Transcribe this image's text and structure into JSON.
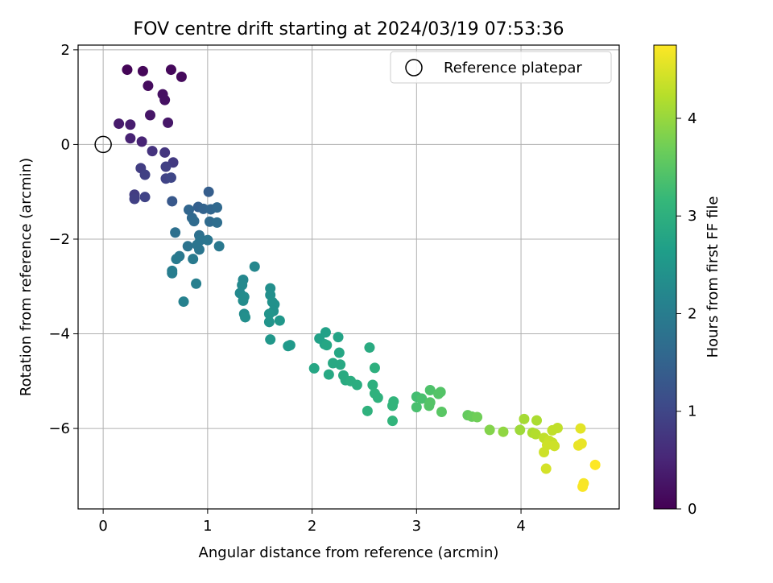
{
  "chart_data": {
    "type": "scatter",
    "title": "FOV centre drift starting at 2024/03/19 07:53:36",
    "xlabel": "Angular distance from reference (arcmin)",
    "ylabel": "Rotation from reference (arcmin)",
    "xlim": [
      -0.24,
      4.94
    ],
    "ylim": [
      -7.7,
      2.1
    ],
    "xticks": [
      0,
      1,
      2,
      3,
      4
    ],
    "yticks": [
      2,
      0,
      -2,
      -4,
      -6
    ],
    "grid": true,
    "legend": {
      "position": "top-right",
      "entries": [
        "Reference platepar"
      ]
    },
    "reference_point": {
      "x": 0,
      "y": 0
    },
    "colorbar": {
      "label": "Hours from first FF file",
      "range": [
        0,
        4.75
      ],
      "ticks": [
        0,
        1,
        2,
        3,
        4
      ],
      "colormap": "viridis",
      "colors": [
        "#440154",
        "#482878",
        "#3e4a89",
        "#31688e",
        "#26828e",
        "#1f9e89",
        "#35b779",
        "#6ece58",
        "#b5de2b",
        "#fde725"
      ]
    },
    "points": [
      {
        "x": 0.23,
        "y": 1.58,
        "c": 0.05
      },
      {
        "x": 0.38,
        "y": 1.55,
        "c": 0.08
      },
      {
        "x": 0.65,
        "y": 1.58,
        "c": 0.1
      },
      {
        "x": 0.75,
        "y": 1.43,
        "c": 0.12
      },
      {
        "x": 0.43,
        "y": 1.24,
        "c": 0.15
      },
      {
        "x": 0.57,
        "y": 1.06,
        "c": 0.2
      },
      {
        "x": 0.59,
        "y": 0.94,
        "c": 0.22
      },
      {
        "x": 0.45,
        "y": 0.62,
        "c": 0.28
      },
      {
        "x": 0.62,
        "y": 0.46,
        "c": 0.3
      },
      {
        "x": 0.15,
        "y": 0.44,
        "c": 0.35
      },
      {
        "x": 0.26,
        "y": 0.42,
        "c": 0.38
      },
      {
        "x": 0.26,
        "y": 0.13,
        "c": 0.45
      },
      {
        "x": 0.37,
        "y": 0.06,
        "c": 0.48
      },
      {
        "x": 0.47,
        "y": -0.14,
        "c": 0.7
      },
      {
        "x": 0.59,
        "y": -0.17,
        "c": 0.75
      },
      {
        "x": 0.67,
        "y": -0.38,
        "c": 0.8
      },
      {
        "x": 0.36,
        "y": -0.5,
        "c": 0.85
      },
      {
        "x": 0.6,
        "y": -0.47,
        "c": 0.9
      },
      {
        "x": 0.4,
        "y": -0.64,
        "c": 0.9
      },
      {
        "x": 0.6,
        "y": -0.72,
        "c": 0.95
      },
      {
        "x": 0.65,
        "y": -0.7,
        "c": 1.0
      },
      {
        "x": 0.3,
        "y": -1.06,
        "c": 0.85
      },
      {
        "x": 0.3,
        "y": -1.15,
        "c": 0.9
      },
      {
        "x": 0.4,
        "y": -1.11,
        "c": 0.95
      },
      {
        "x": 0.66,
        "y": -1.2,
        "c": 1.3
      },
      {
        "x": 1.01,
        "y": -1.0,
        "c": 1.4
      },
      {
        "x": 0.91,
        "y": -1.32,
        "c": 1.45
      },
      {
        "x": 0.96,
        "y": -1.36,
        "c": 1.5
      },
      {
        "x": 1.03,
        "y": -1.37,
        "c": 1.55
      },
      {
        "x": 1.09,
        "y": -1.33,
        "c": 1.6
      },
      {
        "x": 0.82,
        "y": -1.38,
        "c": 1.55
      },
      {
        "x": 0.85,
        "y": -1.55,
        "c": 1.6
      },
      {
        "x": 0.87,
        "y": -1.62,
        "c": 1.65
      },
      {
        "x": 1.02,
        "y": -1.63,
        "c": 1.65
      },
      {
        "x": 1.09,
        "y": -1.65,
        "c": 1.7
      },
      {
        "x": 0.69,
        "y": -1.86,
        "c": 1.75
      },
      {
        "x": 0.92,
        "y": -1.92,
        "c": 1.75
      },
      {
        "x": 0.93,
        "y": -2.02,
        "c": 1.8
      },
      {
        "x": 1.0,
        "y": -2.02,
        "c": 1.85
      },
      {
        "x": 0.81,
        "y": -2.15,
        "c": 1.8
      },
      {
        "x": 0.9,
        "y": -2.12,
        "c": 1.85
      },
      {
        "x": 0.92,
        "y": -2.22,
        "c": 1.85
      },
      {
        "x": 1.11,
        "y": -2.15,
        "c": 1.9
      },
      {
        "x": 0.73,
        "y": -2.36,
        "c": 1.9
      },
      {
        "x": 0.7,
        "y": -2.42,
        "c": 1.95
      },
      {
        "x": 0.86,
        "y": -2.42,
        "c": 1.95
      },
      {
        "x": 0.66,
        "y": -2.67,
        "c": 2.0
      },
      {
        "x": 0.66,
        "y": -2.72,
        "c": 2.0
      },
      {
        "x": 0.89,
        "y": -2.94,
        "c": 2.05
      },
      {
        "x": 0.77,
        "y": -3.32,
        "c": 2.1
      },
      {
        "x": 1.45,
        "y": -2.58,
        "c": 2.2
      },
      {
        "x": 1.34,
        "y": -2.86,
        "c": 2.2
      },
      {
        "x": 1.33,
        "y": -2.97,
        "c": 2.25
      },
      {
        "x": 1.31,
        "y": -3.14,
        "c": 2.25
      },
      {
        "x": 1.35,
        "y": -3.22,
        "c": 2.3
      },
      {
        "x": 1.34,
        "y": -3.3,
        "c": 2.3
      },
      {
        "x": 1.6,
        "y": -3.04,
        "c": 2.35
      },
      {
        "x": 1.6,
        "y": -3.18,
        "c": 2.35
      },
      {
        "x": 1.62,
        "y": -3.33,
        "c": 2.4
      },
      {
        "x": 1.64,
        "y": -3.38,
        "c": 2.4
      },
      {
        "x": 1.63,
        "y": -3.52,
        "c": 2.4
      },
      {
        "x": 1.59,
        "y": -3.58,
        "c": 2.45
      },
      {
        "x": 1.35,
        "y": -3.58,
        "c": 2.3
      },
      {
        "x": 1.36,
        "y": -3.65,
        "c": 2.35
      },
      {
        "x": 1.59,
        "y": -3.75,
        "c": 2.45
      },
      {
        "x": 1.69,
        "y": -3.72,
        "c": 2.5
      },
      {
        "x": 1.6,
        "y": -4.12,
        "c": 2.5
      },
      {
        "x": 1.79,
        "y": -4.24,
        "c": 2.55
      },
      {
        "x": 1.77,
        "y": -4.26,
        "c": 2.55
      },
      {
        "x": 2.13,
        "y": -3.97,
        "c": 2.7
      },
      {
        "x": 2.07,
        "y": -4.1,
        "c": 2.7
      },
      {
        "x": 2.25,
        "y": -4.07,
        "c": 2.75
      },
      {
        "x": 2.12,
        "y": -4.22,
        "c": 2.75
      },
      {
        "x": 2.14,
        "y": -4.24,
        "c": 2.8
      },
      {
        "x": 2.55,
        "y": -4.29,
        "c": 2.9
      },
      {
        "x": 2.26,
        "y": -4.4,
        "c": 2.8
      },
      {
        "x": 2.2,
        "y": -4.62,
        "c": 2.85
      },
      {
        "x": 2.27,
        "y": -4.65,
        "c": 2.85
      },
      {
        "x": 2.02,
        "y": -4.73,
        "c": 2.8
      },
      {
        "x": 2.16,
        "y": -4.86,
        "c": 2.85
      },
      {
        "x": 2.3,
        "y": -4.88,
        "c": 2.9
      },
      {
        "x": 2.32,
        "y": -4.98,
        "c": 2.9
      },
      {
        "x": 2.37,
        "y": -5.0,
        "c": 2.95
      },
      {
        "x": 2.43,
        "y": -5.08,
        "c": 2.95
      },
      {
        "x": 2.6,
        "y": -4.72,
        "c": 3.0
      },
      {
        "x": 2.58,
        "y": -5.08,
        "c": 3.0
      },
      {
        "x": 2.6,
        "y": -5.26,
        "c": 3.05
      },
      {
        "x": 2.63,
        "y": -5.35,
        "c": 3.05
      },
      {
        "x": 2.78,
        "y": -5.43,
        "c": 3.1
      },
      {
        "x": 2.77,
        "y": -5.52,
        "c": 3.1
      },
      {
        "x": 2.53,
        "y": -5.63,
        "c": 3.05
      },
      {
        "x": 2.77,
        "y": -5.84,
        "c": 3.1
      },
      {
        "x": 3.0,
        "y": -5.33,
        "c": 3.3
      },
      {
        "x": 3.05,
        "y": -5.37,
        "c": 3.35
      },
      {
        "x": 3.13,
        "y": -5.19,
        "c": 3.4
      },
      {
        "x": 3.23,
        "y": -5.23,
        "c": 3.45
      },
      {
        "x": 3.21,
        "y": -5.27,
        "c": 3.45
      },
      {
        "x": 3.13,
        "y": -5.45,
        "c": 3.45
      },
      {
        "x": 3.12,
        "y": -5.52,
        "c": 3.45
      },
      {
        "x": 3.0,
        "y": -5.55,
        "c": 3.35
      },
      {
        "x": 3.24,
        "y": -5.65,
        "c": 3.5
      },
      {
        "x": 3.49,
        "y": -5.72,
        "c": 3.6
      },
      {
        "x": 3.53,
        "y": -5.75,
        "c": 3.65
      },
      {
        "x": 3.58,
        "y": -5.76,
        "c": 3.7
      },
      {
        "x": 3.7,
        "y": -6.03,
        "c": 3.85
      },
      {
        "x": 3.83,
        "y": -6.07,
        "c": 3.95
      },
      {
        "x": 4.03,
        "y": -5.8,
        "c": 4.1
      },
      {
        "x": 4.15,
        "y": -5.83,
        "c": 4.15
      },
      {
        "x": 3.99,
        "y": -6.03,
        "c": 4.05
      },
      {
        "x": 4.11,
        "y": -6.09,
        "c": 4.15
      },
      {
        "x": 4.14,
        "y": -6.12,
        "c": 4.2
      },
      {
        "x": 4.3,
        "y": -6.04,
        "c": 4.3
      },
      {
        "x": 4.35,
        "y": -5.99,
        "c": 4.3
      },
      {
        "x": 4.22,
        "y": -6.2,
        "c": 4.3
      },
      {
        "x": 4.27,
        "y": -6.26,
        "c": 4.35
      },
      {
        "x": 4.3,
        "y": -6.3,
        "c": 4.35
      },
      {
        "x": 4.25,
        "y": -6.35,
        "c": 4.4
      },
      {
        "x": 4.32,
        "y": -6.37,
        "c": 4.4
      },
      {
        "x": 4.22,
        "y": -6.5,
        "c": 4.4
      },
      {
        "x": 4.24,
        "y": -6.85,
        "c": 4.45
      },
      {
        "x": 4.57,
        "y": -6.0,
        "c": 4.55
      },
      {
        "x": 4.55,
        "y": -6.36,
        "c": 4.6
      },
      {
        "x": 4.58,
        "y": -6.32,
        "c": 4.6
      },
      {
        "x": 4.6,
        "y": -7.16,
        "c": 4.7
      },
      {
        "x": 4.59,
        "y": -7.23,
        "c": 4.72
      },
      {
        "x": 4.71,
        "y": -6.77,
        "c": 4.75
      }
    ]
  }
}
